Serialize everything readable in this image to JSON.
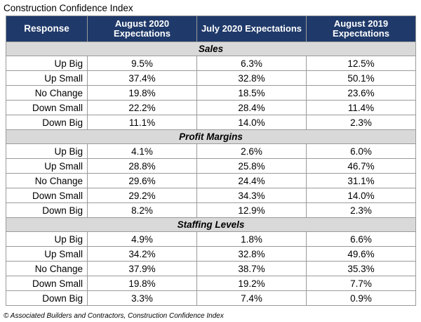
{
  "title": "Construction Confidence Index",
  "footnote": "© Associated Builders and Contractors, Construction Confidence Index",
  "chart_data": {
    "type": "table",
    "columns": [
      "Response",
      "August 2020 Expectations",
      "July 2020 Expectations",
      "August 2019 Expectations"
    ],
    "sections": [
      {
        "name": "Sales",
        "rows": [
          {
            "label": "Up Big",
            "values": [
              "9.5%",
              "6.3%",
              "12.5%"
            ]
          },
          {
            "label": "Up Small",
            "values": [
              "37.4%",
              "32.8%",
              "50.1%"
            ]
          },
          {
            "label": "No Change",
            "values": [
              "19.8%",
              "18.5%",
              "23.6%"
            ]
          },
          {
            "label": "Down Small",
            "values": [
              "22.2%",
              "28.4%",
              "11.4%"
            ]
          },
          {
            "label": "Down Big",
            "values": [
              "11.1%",
              "14.0%",
              "2.3%"
            ]
          }
        ]
      },
      {
        "name": "Profit Margins",
        "rows": [
          {
            "label": "Up Big",
            "values": [
              "4.1%",
              "2.6%",
              "6.0%"
            ]
          },
          {
            "label": "Up Small",
            "values": [
              "28.8%",
              "25.8%",
              "46.7%"
            ]
          },
          {
            "label": "No Change",
            "values": [
              "29.6%",
              "24.4%",
              "31.1%"
            ]
          },
          {
            "label": "Down Small",
            "values": [
              "29.2%",
              "34.3%",
              "14.0%"
            ]
          },
          {
            "label": "Down Big",
            "values": [
              "8.2%",
              "12.9%",
              "2.3%"
            ]
          }
        ]
      },
      {
        "name": "Staffing Levels",
        "rows": [
          {
            "label": "Up Big",
            "values": [
              "4.9%",
              "1.8%",
              "6.6%"
            ]
          },
          {
            "label": "Up Small",
            "values": [
              "34.2%",
              "32.8%",
              "49.6%"
            ]
          },
          {
            "label": "No Change",
            "values": [
              "37.9%",
              "38.7%",
              "35.3%"
            ]
          },
          {
            "label": "Down Small",
            "values": [
              "19.8%",
              "19.2%",
              "7.7%"
            ]
          },
          {
            "label": "Down Big",
            "values": [
              "3.3%",
              "7.4%",
              "0.9%"
            ]
          }
        ]
      }
    ]
  },
  "colors": {
    "header_bg": "#1f3a6a",
    "section_bg": "#d9d9d9"
  }
}
